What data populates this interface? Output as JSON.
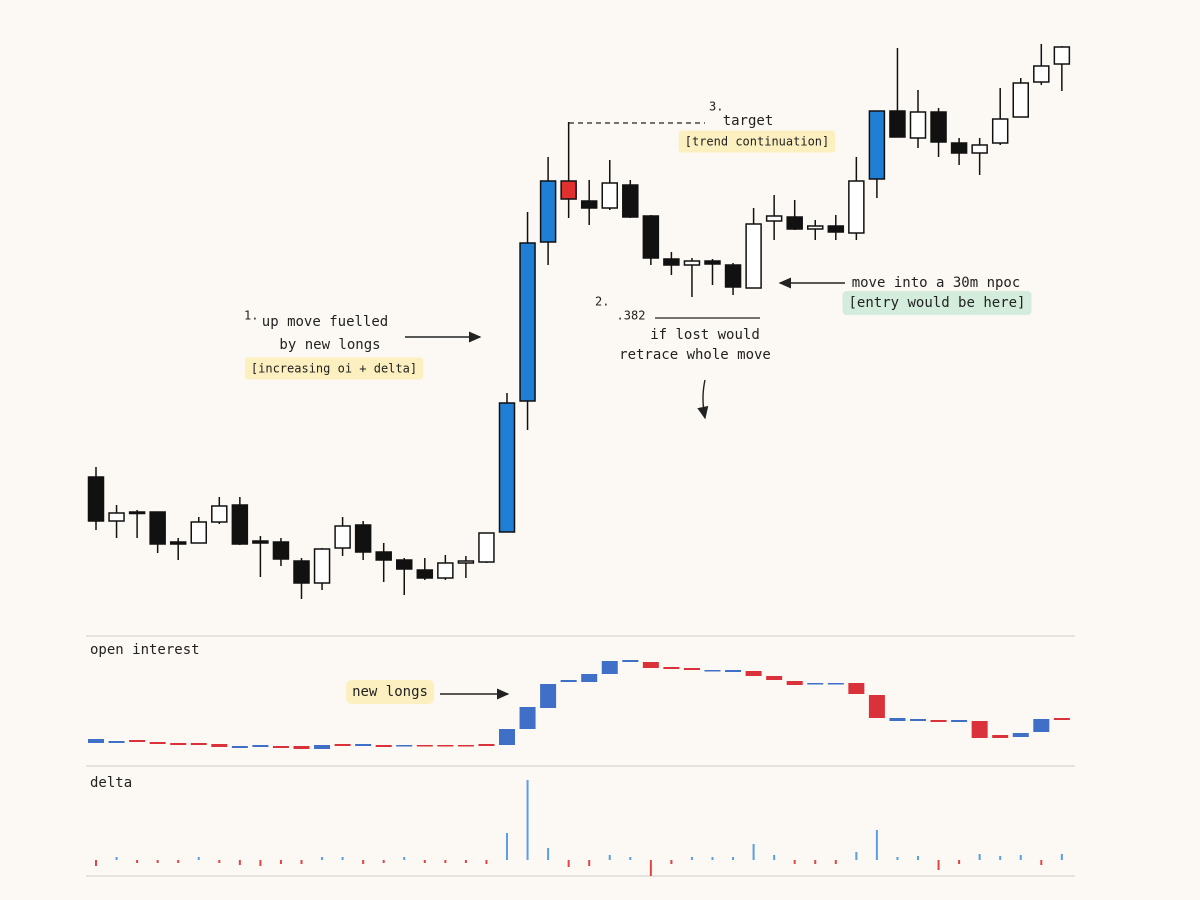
{
  "chart_data": [
    {
      "type": "candlestick",
      "open": [
        143,
        99,
        108,
        108,
        78,
        77,
        98,
        115,
        79,
        78,
        59,
        37,
        72,
        95,
        68,
        60,
        50,
        42,
        57,
        58,
        88,
        219,
        378,
        421,
        419,
        412,
        435,
        404,
        361,
        355,
        359,
        355,
        332,
        399,
        403,
        391,
        394,
        387,
        441,
        509,
        482,
        508,
        477,
        467,
        477,
        503,
        538,
        556
      ],
      "high": [
        153,
        115,
        110,
        108,
        82,
        103,
        123,
        123,
        84,
        82,
        62,
        72,
        103,
        99,
        77,
        62,
        62,
        65,
        64,
        87,
        227,
        408,
        463,
        498,
        440,
        460,
        440,
        405,
        368,
        362,
        361,
        357,
        412,
        425,
        420,
        400,
        405,
        463,
        509,
        572,
        530,
        512,
        482,
        482,
        532,
        542,
        576,
        574
      ],
      "low": [
        90,
        82,
        82,
        67,
        60,
        77,
        96,
        75,
        43,
        54,
        21,
        30,
        64,
        60,
        38,
        25,
        40,
        40,
        42,
        57,
        88,
        190,
        355,
        402,
        395,
        410,
        402,
        355,
        345,
        323,
        335,
        325,
        332,
        380,
        390,
        380,
        380,
        380,
        422,
        483,
        472,
        463,
        455,
        445,
        475,
        503,
        535,
        529
      ],
      "close": [
        99,
        107,
        107,
        76,
        76,
        98,
        114,
        76,
        77,
        61,
        37,
        71,
        94,
        68,
        60,
        51,
        42,
        57,
        59,
        87,
        217,
        377,
        439,
        439,
        412,
        437,
        403,
        362,
        355,
        359,
        356,
        333,
        396,
        404,
        391,
        394,
        388,
        439,
        509,
        483,
        508,
        478,
        467,
        475,
        501,
        537,
        554,
        573
      ],
      "colors": [
        "#111111",
        "#ffffff",
        "#111111",
        "#111111",
        "#111111",
        "#ffffff",
        "#ffffff",
        "#111111",
        "#111111",
        "#111111",
        "#111111",
        "#ffffff",
        "#ffffff",
        "#111111",
        "#111111",
        "#111111",
        "#111111",
        "#ffffff",
        "#ffffff",
        "#ffffff",
        "#1f7fd4",
        "#1f7fd4",
        "#1f7fd4",
        "#e03131",
        "#111111",
        "#ffffff",
        "#111111",
        "#111111",
        "#111111",
        "#ffffff",
        "#111111",
        "#111111",
        "#ffffff",
        "#ffffff",
        "#111111",
        "#ffffff",
        "#111111",
        "#ffffff",
        "#1f7fd4",
        "#111111",
        "#ffffff",
        "#111111",
        "#111111",
        "#ffffff",
        "#ffffff",
        "#ffffff",
        "#ffffff",
        "#ffffff"
      ],
      "ylim": [
        0,
        600
      ],
      "annotations": [
        "1.",
        "up move fuelled",
        "by new longs",
        "[increasing oi + delta]",
        "2.",
        ".382",
        "if lost would",
        "retrace whole move",
        "3.",
        "target",
        "[trend continuation]",
        "move into a 30m npoc",
        "[entry would be here]"
      ]
    },
    {
      "type": "oi",
      "title": "open interest",
      "open": [
        17,
        17,
        20,
        18,
        17,
        17,
        16,
        12,
        13,
        14,
        14,
        11,
        16,
        14,
        15,
        14,
        15,
        15,
        15,
        16,
        15,
        31,
        52,
        78,
        78,
        86,
        98,
        98,
        93,
        92,
        89,
        88,
        89,
        84,
        79,
        76,
        76,
        77,
        65,
        39,
        39,
        40,
        38,
        39,
        25,
        23,
        28,
        42
      ],
      "close": [
        21,
        19,
        18,
        16,
        15,
        15,
        13,
        14,
        15,
        12,
        11,
        15,
        14,
        16,
        13,
        15,
        14,
        14,
        14,
        14,
        31,
        53,
        76,
        80,
        86,
        99,
        100,
        92,
        91,
        90,
        90,
        90,
        84,
        80,
        75,
        77,
        77,
        66,
        42,
        42,
        41,
        38,
        40,
        22,
        22,
        27,
        41,
        40
      ],
      "up_color": "#3f6fc6",
      "down_color": "#d9323a",
      "ylim": [
        0,
        120
      ],
      "annotations": [
        "new longs"
      ]
    },
    {
      "type": "delta",
      "title": "delta",
      "values": [
        -6,
        3,
        -3,
        -3,
        -3,
        3,
        -3,
        -5,
        -6,
        -4,
        -4,
        3,
        3,
        -4,
        -3,
        3,
        -3,
        -3,
        -3,
        -4,
        27,
        80,
        12,
        -7,
        -6,
        5,
        3,
        -16,
        -4,
        3,
        3,
        3,
        16,
        5,
        -4,
        -4,
        -4,
        8,
        30,
        3,
        4,
        -10,
        -4,
        6,
        4,
        5,
        -5,
        6
      ],
      "up_color": "#5a9ee8",
      "down_color": "#e04545",
      "ylim": [
        -20,
        90
      ]
    }
  ]
}
